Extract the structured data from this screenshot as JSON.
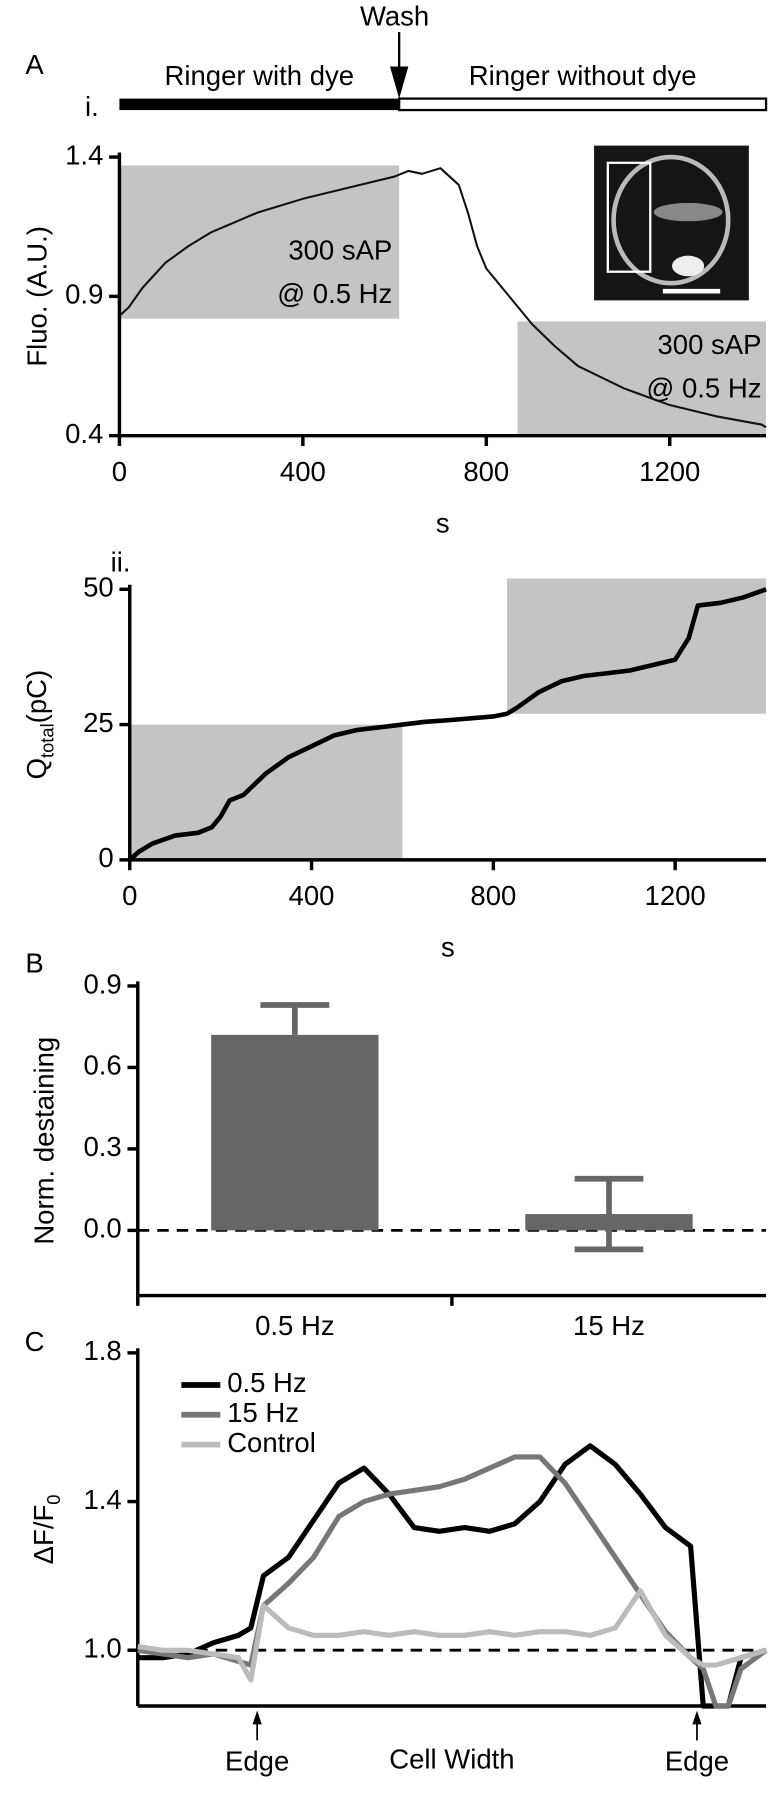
{
  "chart_data": [
    {
      "type": "line",
      "panel_label": "A",
      "sub_label": "i.",
      "ylabel": "Fluo. (A.U.)",
      "xlabel": "s",
      "xlim": [
        0,
        1410
      ],
      "ylim": [
        0.4,
        1.4
      ],
      "xticks": [
        0,
        400,
        800,
        1200
      ],
      "yticks": [
        0.4,
        0.9,
        1.4
      ],
      "color": "#111111",
      "x": [
        0,
        20,
        50,
        100,
        150,
        200,
        300,
        400,
        500,
        600,
        630,
        660,
        700,
        740,
        760,
        780,
        800,
        850,
        900,
        950,
        1000,
        1100,
        1200,
        1300,
        1400,
        1410
      ],
      "values": [
        0.83,
        0.86,
        0.93,
        1.02,
        1.08,
        1.13,
        1.2,
        1.25,
        1.29,
        1.33,
        1.35,
        1.34,
        1.36,
        1.3,
        1.2,
        1.08,
        1.0,
        0.9,
        0.8,
        0.72,
        0.65,
        0.57,
        0.51,
        0.47,
        0.44,
        0.43
      ],
      "wash_x": 610,
      "wash_label": "Wash",
      "before_label": "Ringer with dye",
      "after_label": "Ringer without dye",
      "shaded_regions": [
        {
          "x": [
            0,
            610
          ],
          "y": [
            0.82,
            1.37
          ],
          "labels": [
            "300 sAP",
            "@ 0.5 Hz"
          ]
        },
        {
          "x": [
            868,
            1410
          ],
          "y": [
            0.4,
            0.81
          ],
          "labels": [
            "300 sAP",
            "@ 0.5 Hz"
          ]
        }
      ]
    },
    {
      "type": "line",
      "sub_label": "ii.",
      "ylabel": [
        "Q",
        "total",
        "(pC)"
      ],
      "xlabel": "s",
      "xlim": [
        0,
        1400
      ],
      "ylim": [
        0,
        50
      ],
      "xticks": [
        0,
        400,
        800,
        1200
      ],
      "yticks": [
        0,
        25,
        50
      ],
      "color": "#000000",
      "x": [
        0,
        20,
        50,
        100,
        150,
        180,
        200,
        220,
        250,
        300,
        350,
        400,
        450,
        500,
        550,
        600,
        650,
        700,
        800,
        830,
        850,
        900,
        950,
        1000,
        1050,
        1100,
        1150,
        1200,
        1230,
        1250,
        1300,
        1350,
        1400
      ],
      "values": [
        0,
        1.5,
        3,
        4.5,
        5,
        6,
        8,
        11,
        12,
        16,
        19,
        21,
        23,
        24,
        24.5,
        25,
        25.5,
        25.8,
        26.5,
        27,
        28,
        31,
        33,
        34,
        34.5,
        35,
        36,
        37,
        41,
        47,
        47.5,
        48.5,
        50
      ],
      "shaded_regions": [
        {
          "x": [
            0,
            600
          ],
          "y": [
            0,
            25
          ]
        },
        {
          "x": [
            830,
            1400
          ],
          "y": [
            27,
            52
          ]
        }
      ]
    },
    {
      "type": "bar",
      "panel_label": "B",
      "ylabel": "Norm. destaining",
      "categories": [
        "0.5 Hz",
        "15 Hz"
      ],
      "values": [
        0.72,
        0.06
      ],
      "errors": [
        0.11,
        0.13
      ],
      "ylim": [
        -0.24,
        0.9
      ],
      "yticks": [
        {
          "value": 0,
          "label": "0.0"
        },
        0.3,
        0.6,
        0.9
      ],
      "color": "#666666",
      "reference_line": 0
    },
    {
      "type": "line",
      "panel_label": "C",
      "ylabel": [
        "ΔF/F",
        "0"
      ],
      "xlabel": "Cell Width",
      "xlim": [
        0,
        100
      ],
      "ylim": [
        0.85,
        1.8
      ],
      "yticks": [
        {
          "value": 1,
          "label": "1.0"
        },
        1.4,
        1.8
      ],
      "legend": "upper left",
      "reference_line": 1,
      "edges": [
        {
          "x": 19,
          "label": "Edge"
        },
        {
          "x": 89,
          "label": "Edge"
        }
      ],
      "x": [
        0,
        4,
        8,
        12,
        16,
        18,
        20,
        24,
        28,
        32,
        36,
        40,
        44,
        48,
        52,
        56,
        60,
        64,
        68,
        72,
        76,
        80,
        84,
        88,
        90,
        92,
        94,
        96,
        100
      ],
      "series": [
        {
          "name": "0.5 Hz",
          "color": "#000000",
          "values": [
            0.98,
            0.98,
            0.99,
            1.02,
            1.04,
            1.06,
            1.2,
            1.25,
            1.35,
            1.45,
            1.49,
            1.42,
            1.33,
            1.32,
            1.33,
            1.32,
            1.34,
            1.4,
            1.5,
            1.55,
            1.5,
            1.42,
            1.33,
            1.28,
            0.85,
            0.85,
            0.85,
            0.98,
            1.0
          ]
        },
        {
          "name": "15 Hz",
          "color": "#777777",
          "values": [
            1.0,
            0.99,
            0.98,
            0.99,
            0.97,
            0.96,
            1.12,
            1.18,
            1.25,
            1.36,
            1.4,
            1.42,
            1.43,
            1.44,
            1.46,
            1.49,
            1.52,
            1.52,
            1.45,
            1.35,
            1.25,
            1.15,
            1.05,
            0.98,
            0.95,
            0.85,
            0.85,
            0.95,
            1.0
          ]
        },
        {
          "name": "Control",
          "color": "#bbbbbb",
          "values": [
            1.01,
            1.0,
            1.0,
            0.99,
            0.98,
            0.92,
            1.12,
            1.06,
            1.04,
            1.04,
            1.05,
            1.04,
            1.05,
            1.04,
            1.04,
            1.05,
            1.04,
            1.05,
            1.05,
            1.04,
            1.06,
            1.16,
            1.04,
            0.98,
            0.96,
            0.96,
            0.97,
            0.98,
            1.0
          ]
        }
      ]
    }
  ]
}
